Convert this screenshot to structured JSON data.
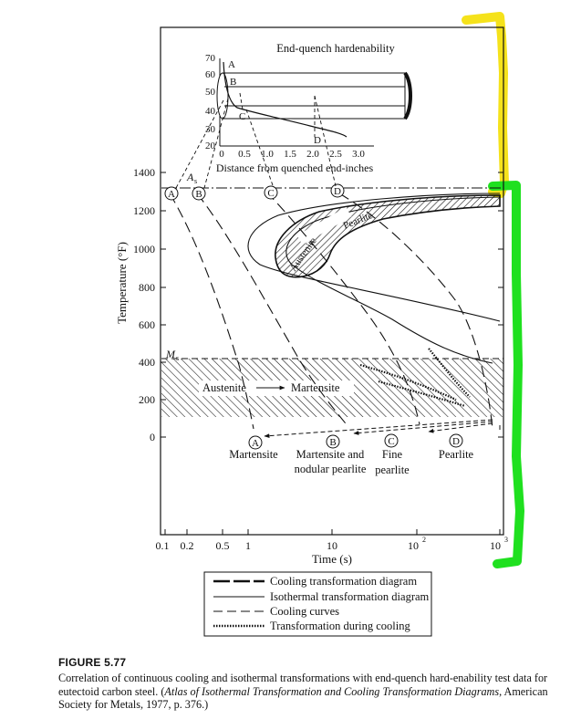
{
  "figure": {
    "inset": {
      "title": "End-quench hardenability",
      "xlabel": "Distance from quenched end-inches",
      "x_ticks": [
        "0",
        "0.5",
        "1.0",
        "1.5",
        "2.0",
        "2.5",
        "3.0"
      ],
      "y_ticks": [
        "70",
        "60",
        "50",
        "40",
        "30",
        "20"
      ],
      "points": [
        "A",
        "B",
        "C",
        "D"
      ]
    },
    "main": {
      "ylabel": "Temperature (°F)",
      "xlabel": "Time (s)",
      "y_ticks": [
        "1400",
        "1200",
        "1000",
        "800",
        "600",
        "400",
        "200",
        "0"
      ],
      "x_ticks": [
        "0.1",
        "0.2",
        "0.5",
        "1",
        "10",
        "10",
        "3"
      ],
      "as_label": "A",
      "as_sub": "s",
      "ms_label": "M",
      "ms_sub": "s",
      "austenite": "Austenite",
      "martensite": "Martensite",
      "austenite_diag": "Austenite",
      "pearlite_diag": "Pearlite",
      "arrow": "→",
      "circled_points": [
        "A",
        "B",
        "C",
        "D"
      ],
      "products": {
        "a": "Martensite",
        "b1": "Martensite and",
        "b2": "nodular pearlite",
        "c1": "Fine",
        "c2": "pearlite",
        "d": "Pearlite"
      }
    },
    "legend": {
      "items": [
        "Cooling transformation diagram",
        "Isothermal transformation diagram",
        "Cooling curves",
        "Transformation during cooling"
      ]
    },
    "highlights": {
      "yellow": "#f5e21b",
      "green": "#1fe01f"
    }
  },
  "caption": {
    "label": "FIGURE 5.77",
    "text_plain": "Correlation of continuous cooling and isothermal transformations with end-quench hard-enability test data for eutectoid carbon steel. (",
    "text_italic": "Atlas of Isothermal Transformation and Cooling Transformation Diagrams,",
    "text_end": " American Society for Metals, 1977, p. 376.)"
  }
}
